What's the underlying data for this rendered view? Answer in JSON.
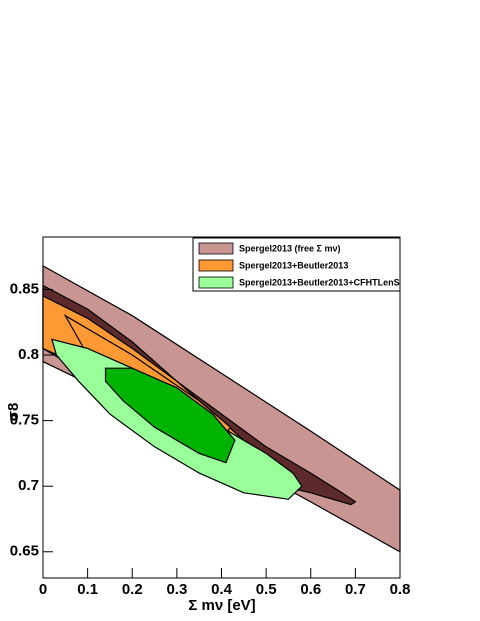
{
  "chart_data": {
    "type": "contour",
    "xlabel": "Σ mν [eV]",
    "ylabel": "σ8",
    "xlim": [
      0,
      0.8
    ],
    "ylim": [
      0.63,
      0.89
    ],
    "xticks": [
      0,
      0.1,
      0.2,
      0.3,
      0.4,
      0.5,
      0.6,
      0.7,
      0.8
    ],
    "yticks": [
      0.65,
      0.7,
      0.75,
      0.8,
      0.85
    ],
    "legend": "top-right",
    "series": [
      {
        "name": "Spergel2013 (free Σ mν)",
        "color": "#c99592",
        "inner_color": "#5c2a2a",
        "outer": {
          "x": [
            0,
            0.2,
            0.4,
            0.6,
            0.8,
            0.8,
            0.6,
            0.4,
            0.2,
            0
          ],
          "y": [
            0.868,
            0.83,
            0.786,
            0.742,
            0.697,
            0.65,
            0.688,
            0.725,
            0.762,
            0.795
          ]
        },
        "inner": {
          "x": [
            0,
            0.1,
            0.2,
            0.3,
            0.4,
            0.5,
            0.6,
            0.67,
            0.7,
            0.69,
            0.6,
            0.5,
            0.4,
            0.3,
            0.2,
            0.1,
            0
          ],
          "y": [
            0.853,
            0.835,
            0.81,
            0.78,
            0.755,
            0.73,
            0.71,
            0.695,
            0.688,
            0.686,
            0.695,
            0.703,
            0.72,
            0.74,
            0.765,
            0.785,
            0.805
          ]
        }
      },
      {
        "name": "Spergel2013+Beutler2013",
        "color": "#ff9933",
        "inner_color": "#ff9933",
        "outer": {
          "x": [
            0,
            0.1,
            0.2,
            0.3,
            0.4,
            0.45,
            0.45,
            0.35,
            0.2,
            0.1,
            0
          ],
          "y": [
            0.845,
            0.828,
            0.805,
            0.78,
            0.75,
            0.735,
            0.72,
            0.735,
            0.76,
            0.79,
            0.805
          ]
        },
        "inner": {
          "x": [
            0.05,
            0.2,
            0.35,
            0.42,
            0.4,
            0.25,
            0.1
          ],
          "y": [
            0.83,
            0.8,
            0.765,
            0.745,
            0.735,
            0.77,
            0.8
          ]
        }
      },
      {
        "name": "Spergel2013+Beutler2013+CFHTLenS",
        "color": "#99ff99",
        "inner_color": "#00b300",
        "outer": {
          "x": [
            0.02,
            0.1,
            0.2,
            0.3,
            0.4,
            0.5,
            0.56,
            0.58,
            0.55,
            0.45,
            0.35,
            0.25,
            0.15,
            0.08,
            0.03
          ],
          "y": [
            0.812,
            0.805,
            0.79,
            0.77,
            0.745,
            0.725,
            0.71,
            0.7,
            0.69,
            0.695,
            0.71,
            0.73,
            0.755,
            0.78,
            0.8
          ]
        },
        "inner": {
          "x": [
            0.14,
            0.2,
            0.3,
            0.38,
            0.43,
            0.41,
            0.35,
            0.25,
            0.18,
            0.14
          ],
          "y": [
            0.79,
            0.79,
            0.775,
            0.755,
            0.735,
            0.718,
            0.725,
            0.745,
            0.765,
            0.78
          ]
        }
      }
    ]
  }
}
